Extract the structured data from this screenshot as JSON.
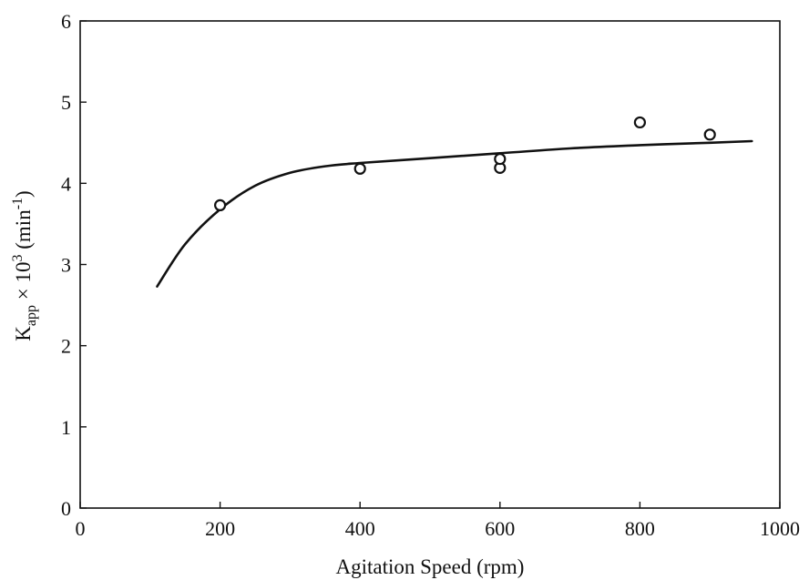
{
  "chart_data": {
    "type": "scatter",
    "title": "",
    "xlabel": "Agitation Speed (rpm)",
    "ylabel": {
      "main": "K",
      "sub": "app",
      "times": " × 10",
      "exp": "3",
      "unit_open": "  (min",
      "unit_exp": "-1",
      "unit_close": ")"
    },
    "xlim": [
      0,
      1000
    ],
    "ylim": [
      0,
      6
    ],
    "xticks": [
      0,
      200,
      400,
      600,
      800,
      1000
    ],
    "yticks": [
      0,
      1,
      2,
      3,
      4,
      5,
      6
    ],
    "xtick_labels": [
      "0",
      "200",
      "400",
      "600",
      "800",
      "1000"
    ],
    "ytick_labels": [
      "0",
      "1",
      "2",
      "3",
      "4",
      "5",
      "6"
    ],
    "grid": false,
    "legend": "none",
    "series": [
      {
        "kind": "points",
        "marker": "open-circle",
        "x": [
          200,
          400,
          600,
          600,
          800,
          900
        ],
        "y": [
          3.73,
          4.18,
          4.19,
          4.3,
          4.75,
          4.6
        ]
      },
      {
        "kind": "fitted-curve",
        "x": [
          110,
          150,
          200,
          250,
          300,
          350,
          400,
          500,
          600,
          700,
          800,
          900,
          960
        ],
        "y": [
          2.73,
          3.25,
          3.68,
          3.97,
          4.13,
          4.21,
          4.25,
          4.31,
          4.37,
          4.43,
          4.47,
          4.5,
          4.52
        ]
      }
    ],
    "colors": {
      "ink": "#111111",
      "background": "#ffffff"
    }
  }
}
